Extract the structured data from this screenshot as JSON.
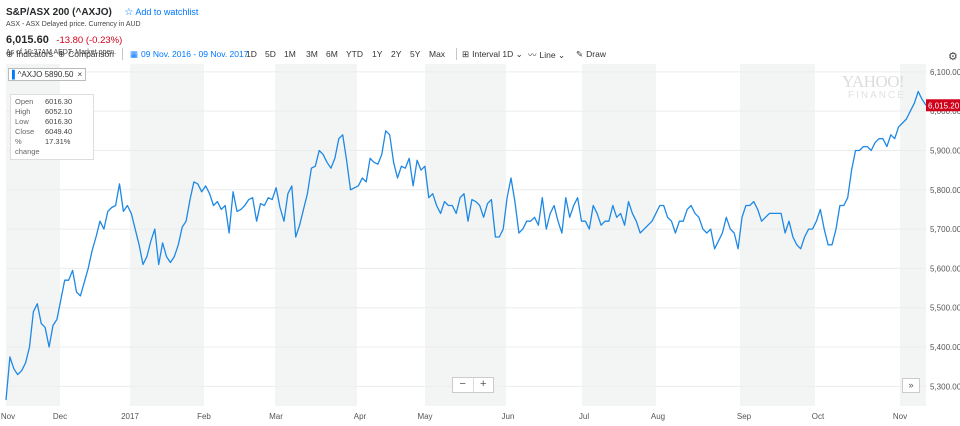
{
  "header": {
    "title": "S&P/ASX 200 (^AXJO)",
    "watchlist": "Add to watchlist",
    "exchange": "ASX - ASX Delayed price. Currency in AUD",
    "price": "6,015.60",
    "change": "-13.80 (-0.23%)",
    "asof": "As of 10:37AM AEDT. Market open."
  },
  "toolbar": {
    "indicators": "Indicators",
    "comparison": "Comparison",
    "daterange": "09 Nov. 2016 - 09 Nov. 2017",
    "ranges": [
      "1D",
      "5D",
      "1M",
      "3M",
      "6M",
      "YTD",
      "1Y",
      "2Y",
      "5Y",
      "Max"
    ],
    "interval": "Interval",
    "interval_value": "1D",
    "line": "Line",
    "draw": "Draw"
  },
  "legend_tag": {
    "label": "^AXJO",
    "value": "5890.50",
    "close": "×"
  },
  "ohlc": [
    {
      "k": "Open",
      "v": "6016.30"
    },
    {
      "k": "High",
      "v": "6052.10"
    },
    {
      "k": "Low",
      "v": "6016.30"
    },
    {
      "k": "Close",
      "v": "6049.40"
    },
    {
      "k": "% change",
      "v": "17.31%"
    }
  ],
  "logo": {
    "line1": "YAHOO!",
    "line2": "FINANCE"
  },
  "zoom": {
    "minus": "−",
    "plus": "+"
  },
  "expand": "»",
  "chart_data": {
    "type": "line",
    "series": [
      {
        "name": "^AXJO",
        "color": "#1e88e5",
        "values": [
          5265,
          5375,
          5345,
          5330,
          5340,
          5360,
          5400,
          5490,
          5510,
          5460,
          5450,
          5400,
          5455,
          5470,
          5520,
          5570,
          5570,
          5595,
          5540,
          5530,
          5565,
          5600,
          5645,
          5680,
          5720,
          5700,
          5745,
          5755,
          5760,
          5815,
          5745,
          5760,
          5740,
          5700,
          5660,
          5610,
          5630,
          5670,
          5700,
          5610,
          5665,
          5630,
          5615,
          5630,
          5660,
          5705,
          5720,
          5775,
          5820,
          5815,
          5795,
          5810,
          5790,
          5760,
          5770,
          5750,
          5760,
          5690,
          5795,
          5745,
          5750,
          5760,
          5775,
          5780,
          5720,
          5765,
          5760,
          5780,
          5775,
          5805,
          5755,
          5720,
          5790,
          5810,
          5680,
          5710,
          5750,
          5790,
          5855,
          5860,
          5900,
          5890,
          5870,
          5855,
          5880,
          5930,
          5940,
          5875,
          5800,
          5805,
          5810,
          5830,
          5820,
          5880,
          5870,
          5865,
          5890,
          5950,
          5940,
          5870,
          5830,
          5860,
          5855,
          5880,
          5810,
          5875,
          5850,
          5860,
          5780,
          5790,
          5760,
          5740,
          5770,
          5760,
          5760,
          5740,
          5780,
          5790,
          5720,
          5775,
          5770,
          5760,
          5730,
          5765,
          5775,
          5680,
          5680,
          5700,
          5780,
          5830,
          5770,
          5690,
          5700,
          5720,
          5720,
          5730,
          5710,
          5780,
          5700,
          5740,
          5760,
          5720,
          5690,
          5780,
          5730,
          5760,
          5780,
          5720,
          5720,
          5700,
          5760,
          5740,
          5710,
          5720,
          5720,
          5760,
          5730,
          5740,
          5710,
          5770,
          5740,
          5720,
          5690,
          5700,
          5710,
          5720,
          5740,
          5760,
          5760,
          5730,
          5720,
          5690,
          5720,
          5720,
          5750,
          5760,
          5740,
          5730,
          5700,
          5690,
          5700,
          5650,
          5670,
          5690,
          5730,
          5700,
          5690,
          5650,
          5730,
          5760,
          5760,
          5770,
          5750,
          5720,
          5730,
          5740,
          5740,
          5740,
          5740,
          5690,
          5720,
          5680,
          5660,
          5650,
          5680,
          5700,
          5700,
          5720,
          5750,
          5700,
          5660,
          5660,
          5700,
          5760,
          5760,
          5780,
          5850,
          5900,
          5900,
          5910,
          5910,
          5900,
          5920,
          5930,
          5930,
          5910,
          5940,
          5930,
          5960,
          5970,
          5980,
          6000,
          6020,
          6050,
          6030,
          6015
        ]
      }
    ],
    "x_ticks": [
      "Nov",
      "Dec",
      "2017",
      "Feb",
      "Mar",
      "Apr",
      "May",
      "Jun",
      "Jul",
      "Aug",
      "Sep",
      "Oct",
      "Nov"
    ],
    "y_ticks": [
      "6,100.00",
      "6,000.00",
      "5,900.00",
      "5,800.00",
      "5,700.00",
      "5,600.00",
      "5,500.00",
      "5,400.00",
      "5,300.00"
    ],
    "ylim": [
      5250,
      6120
    ],
    "last_label": "6,015.20",
    "last_color": "#d0021b"
  }
}
